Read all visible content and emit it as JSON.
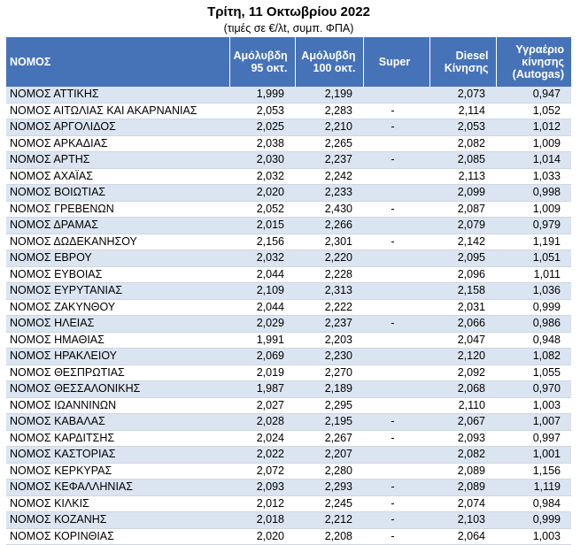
{
  "header": {
    "title": "Τρίτη, 11 Οκτωβρίου 2022",
    "subtitle": "(τιμές σε €/λt, συμπ. ΦΠΑ)"
  },
  "table": {
    "columns": [
      [
        "ΝΟΜΟΣ"
      ],
      [
        "Αμόλυβδη",
        "95 οκτ."
      ],
      [
        "Αμόλυβδη",
        "100 οκτ."
      ],
      [
        "Super"
      ],
      [
        "Diesel",
        "Κίνησης"
      ],
      [
        "Υγραέριο",
        "κίνησης",
        "(Autogas)"
      ]
    ],
    "rows": [
      [
        "ΝΟΜΟΣ ΑΤΤΙΚΗΣ",
        "1,999",
        "2,199",
        null,
        "2,073",
        "0,947"
      ],
      [
        "ΝΟΜΟΣ ΑΙΤΩΛΙΑΣ ΚΑΙ ΑΚΑΡΝΑΝΙΑΣ",
        "2,053",
        "2,283",
        "-",
        "2,114",
        "1,052"
      ],
      [
        "ΝΟΜΟΣ ΑΡΓΟΛΙΔΟΣ",
        "2,025",
        "2,210",
        "-",
        "2,053",
        "1,012"
      ],
      [
        "ΝΟΜΟΣ ΑΡΚΑΔΙΑΣ",
        "2,038",
        "2,265",
        null,
        "2,082",
        "1,009"
      ],
      [
        "ΝΟΜΟΣ ΑΡΤΗΣ",
        "2,030",
        "2,237",
        "-",
        "2,085",
        "1,014"
      ],
      [
        "ΝΟΜΟΣ ΑΧΑΪΑΣ",
        "2,032",
        "2,242",
        null,
        "2,113",
        "1,033"
      ],
      [
        "ΝΟΜΟΣ ΒΟΙΩΤΙΑΣ",
        "2,020",
        "2,233",
        null,
        "2,099",
        "0,998"
      ],
      [
        "ΝΟΜΟΣ ΓΡΕΒΕΝΩΝ",
        "2,052",
        "2,430",
        "-",
        "2,087",
        "1,009"
      ],
      [
        "ΝΟΜΟΣ ΔΡΑΜΑΣ",
        "2,015",
        "2,266",
        null,
        "2,079",
        "0,979"
      ],
      [
        "ΝΟΜΟΣ ΔΩΔΕΚΑΝΗΣΟΥ",
        "2,156",
        "2,301",
        "-",
        "2,142",
        "1,191"
      ],
      [
        "ΝΟΜΟΣ ΕΒΡΟΥ",
        "2,032",
        "2,220",
        null,
        "2,095",
        "1,051"
      ],
      [
        "ΝΟΜΟΣ ΕΥΒΟΙΑΣ",
        "2,044",
        "2,228",
        null,
        "2,096",
        "1,011"
      ],
      [
        "ΝΟΜΟΣ ΕΥΡΥΤΑΝΙΑΣ",
        "2,109",
        "2,313",
        null,
        "2,158",
        "1,036"
      ],
      [
        "ΝΟΜΟΣ ΖΑΚΥΝΘΟΥ",
        "2,044",
        "2,222",
        null,
        "2,031",
        "0,999"
      ],
      [
        "ΝΟΜΟΣ ΗΛΕΙΑΣ",
        "2,029",
        "2,237",
        "-",
        "2,066",
        "0,986"
      ],
      [
        "ΝΟΜΟΣ ΗΜΑΘΙΑΣ",
        "1,991",
        "2,203",
        null,
        "2,047",
        "0,948"
      ],
      [
        "ΝΟΜΟΣ ΗΡΑΚΛΕΙΟΥ",
        "2,069",
        "2,230",
        null,
        "2,120",
        "1,082"
      ],
      [
        "ΝΟΜΟΣ ΘΕΣΠΡΩΤΙΑΣ",
        "2,019",
        "2,270",
        null,
        "2,092",
        "1,055"
      ],
      [
        "ΝΟΜΟΣ ΘΕΣΣΑΛΟΝΙΚΗΣ",
        "1,987",
        "2,189",
        null,
        "2,068",
        "0,970"
      ],
      [
        "ΝΟΜΟΣ ΙΩΑΝΝΙΝΩΝ",
        "2,027",
        "2,295",
        null,
        "2,110",
        "1,003"
      ],
      [
        "ΝΟΜΟΣ ΚΑΒΑΛΑΣ",
        "2,028",
        "2,195",
        "-",
        "2,067",
        "1,007"
      ],
      [
        "ΝΟΜΟΣ ΚΑΡΔΙΤΣΗΣ",
        "2,024",
        "2,267",
        "-",
        "2,093",
        "0,997"
      ],
      [
        "ΝΟΜΟΣ ΚΑΣΤΟΡΙΑΣ",
        "2,022",
        "2,207",
        null,
        "2,082",
        "1,001"
      ],
      [
        "ΝΟΜΟΣ ΚΕΡΚΥΡΑΣ",
        "2,072",
        "2,280",
        null,
        "2,089",
        "1,156"
      ],
      [
        "ΝΟΜΟΣ ΚΕΦΑΛΛΗΝΙΑΣ",
        "2,093",
        "2,293",
        "-",
        "2,089",
        "1,119"
      ],
      [
        "ΝΟΜΟΣ ΚΙΛΚΙΣ",
        "2,012",
        "2,245",
        "-",
        "2,074",
        "0,984"
      ],
      [
        "ΝΟΜΟΣ ΚΟΖΑΝΗΣ",
        "2,018",
        "2,212",
        "-",
        "2,103",
        "0,999"
      ],
      [
        "ΝΟΜΟΣ ΚΟΡΙΝΘΙΑΣ",
        "2,020",
        "2,208",
        "-",
        "2,064",
        "1,003"
      ]
    ]
  }
}
